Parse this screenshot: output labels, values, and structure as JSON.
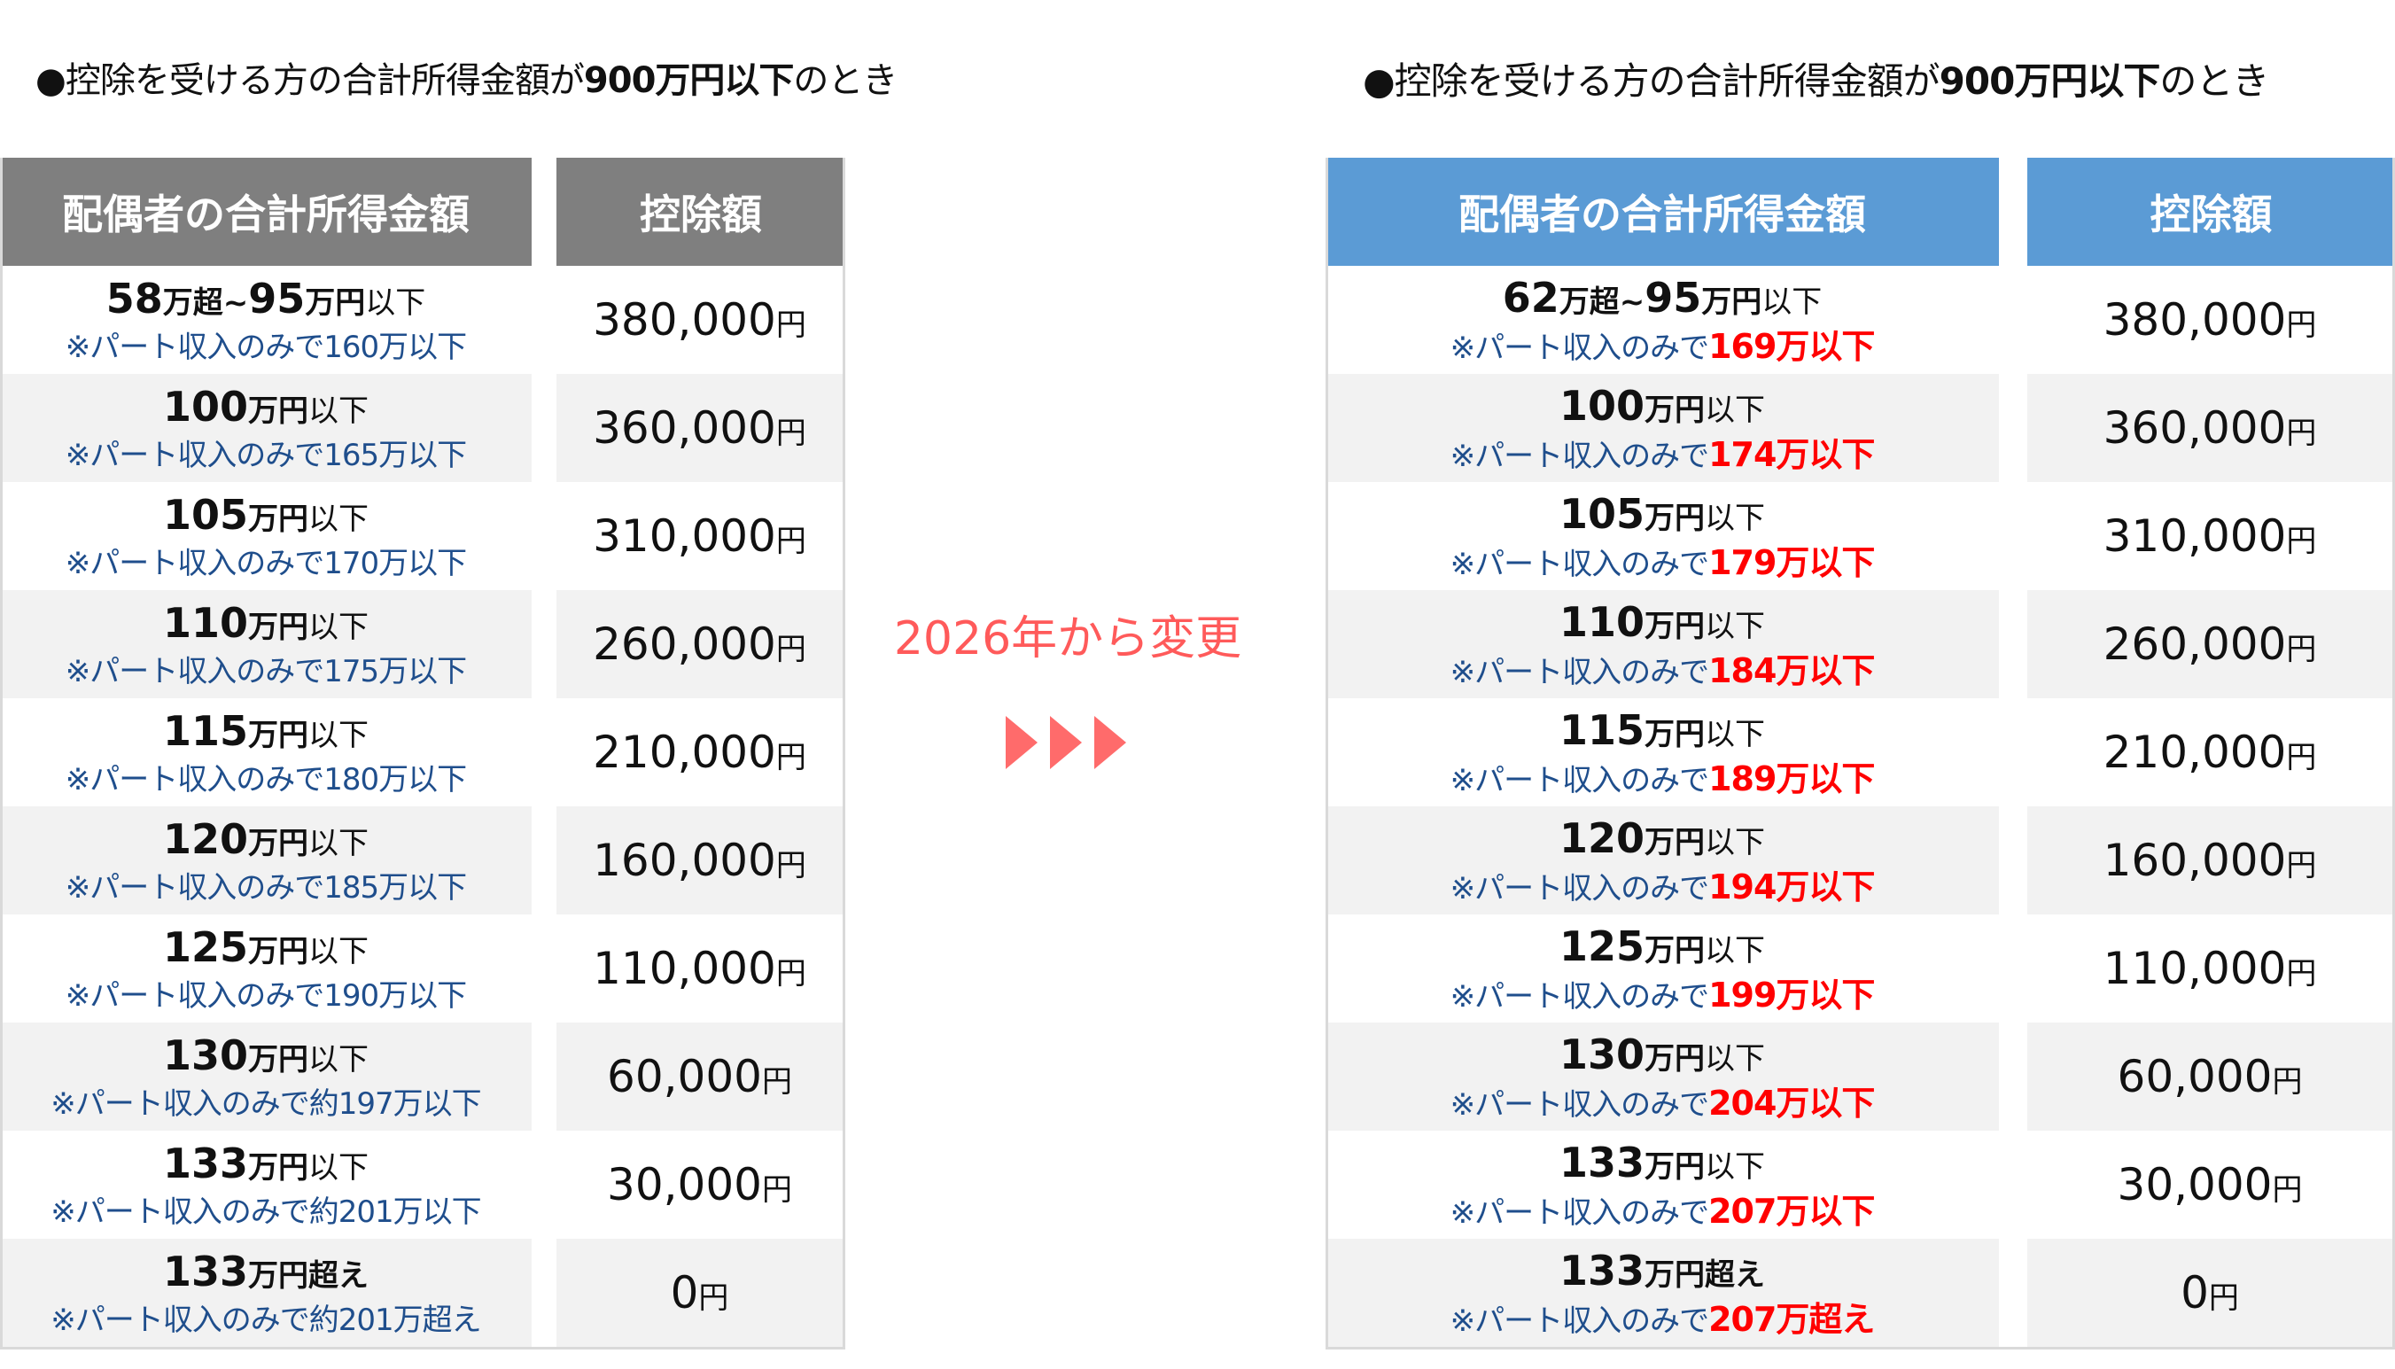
{
  "left": {
    "heading_prefix": "●控除を受ける方の合計所得金額が",
    "heading_bold": "900万円以下",
    "heading_suffix": "のとき",
    "header_income": "配偶者の合計所得金額",
    "header_amount": "控除額",
    "rows": [
      {
        "main_num": "58",
        "main_unit": "万超~",
        "main_num2": "95",
        "main_unit2": "万円",
        "main_rest": "以下",
        "sub": "※パート収入のみで160万以下",
        "amount": "380,000",
        "yen": "円"
      },
      {
        "main_num": "100",
        "main_unit": "万円",
        "main_num2": "",
        "main_unit2": "",
        "main_rest": "以下",
        "sub": "※パート収入のみで165万以下",
        "amount": "360,000",
        "yen": "円"
      },
      {
        "main_num": "105",
        "main_unit": "万円",
        "main_num2": "",
        "main_unit2": "",
        "main_rest": "以下",
        "sub": "※パート収入のみで170万以下",
        "amount": "310,000",
        "yen": "円"
      },
      {
        "main_num": "110",
        "main_unit": "万円",
        "main_num2": "",
        "main_unit2": "",
        "main_rest": "以下",
        "sub": "※パート収入のみで175万以下",
        "amount": "260,000",
        "yen": "円"
      },
      {
        "main_num": "115",
        "main_unit": "万円",
        "main_num2": "",
        "main_unit2": "",
        "main_rest": "以下",
        "sub": "※パート収入のみで180万以下",
        "amount": "210,000",
        "yen": "円"
      },
      {
        "main_num": "120",
        "main_unit": "万円",
        "main_num2": "",
        "main_unit2": "",
        "main_rest": "以下",
        "sub": "※パート収入のみで185万以下",
        "amount": "160,000",
        "yen": "円"
      },
      {
        "main_num": "125",
        "main_unit": "万円",
        "main_num2": "",
        "main_unit2": "",
        "main_rest": "以下",
        "sub": "※パート収入のみで190万以下",
        "amount": "110,000",
        "yen": "円"
      },
      {
        "main_num": "130",
        "main_unit": "万円",
        "main_num2": "",
        "main_unit2": "",
        "main_rest": "以下",
        "sub": "※パート収入のみで約197万以下",
        "amount": "60,000",
        "yen": "円"
      },
      {
        "main_num": "133",
        "main_unit": "万円",
        "main_num2": "",
        "main_unit2": "",
        "main_rest": "以下",
        "sub": "※パート収入のみで約201万以下",
        "amount": "30,000",
        "yen": "円"
      },
      {
        "main_num": "133",
        "main_unit": "万円超え",
        "main_num2": "",
        "main_unit2": "",
        "main_rest": "",
        "sub": "※パート収入のみで約201万超え",
        "amount": "0",
        "yen": "円"
      }
    ]
  },
  "right": {
    "heading_prefix": "●控除を受ける方の合計所得金額が",
    "heading_bold": "900万円以下",
    "heading_suffix": "のとき",
    "header_income": "配偶者の合計所得金額",
    "header_amount": "控除額",
    "rows": [
      {
        "main_num": "62",
        "main_unit": "万超~",
        "main_num2": "95",
        "main_unit2": "万円",
        "main_rest": "以下",
        "sub_prefix": "※パート収入のみで",
        "sub_red": "169万以下",
        "amount": "380,000",
        "yen": "円"
      },
      {
        "main_num": "100",
        "main_unit": "万円",
        "main_num2": "",
        "main_unit2": "",
        "main_rest": "以下",
        "sub_prefix": "※パート収入のみで",
        "sub_red": "174万以下",
        "amount": "360,000",
        "yen": "円"
      },
      {
        "main_num": "105",
        "main_unit": "万円",
        "main_num2": "",
        "main_unit2": "",
        "main_rest": "以下",
        "sub_prefix": "※パート収入のみで",
        "sub_red": "179万以下",
        "amount": "310,000",
        "yen": "円"
      },
      {
        "main_num": "110",
        "main_unit": "万円",
        "main_num2": "",
        "main_unit2": "",
        "main_rest": "以下",
        "sub_prefix": "※パート収入のみで",
        "sub_red": "184万以下",
        "amount": "260,000",
        "yen": "円"
      },
      {
        "main_num": "115",
        "main_unit": "万円",
        "main_num2": "",
        "main_unit2": "",
        "main_rest": "以下",
        "sub_prefix": "※パート収入のみで",
        "sub_red": "189万以下",
        "amount": "210,000",
        "yen": "円"
      },
      {
        "main_num": "120",
        "main_unit": "万円",
        "main_num2": "",
        "main_unit2": "",
        "main_rest": "以下",
        "sub_prefix": "※パート収入のみで",
        "sub_red": "194万以下",
        "amount": "160,000",
        "yen": "円"
      },
      {
        "main_num": "125",
        "main_unit": "万円",
        "main_num2": "",
        "main_unit2": "",
        "main_rest": "以下",
        "sub_prefix": "※パート収入のみで",
        "sub_red": "199万以下",
        "amount": "110,000",
        "yen": "円"
      },
      {
        "main_num": "130",
        "main_unit": "万円",
        "main_num2": "",
        "main_unit2": "",
        "main_rest": "以下",
        "sub_prefix": "※パート収入のみで",
        "sub_red": "204万以下",
        "amount": "60,000",
        "yen": "円"
      },
      {
        "main_num": "133",
        "main_unit": "万円",
        "main_num2": "",
        "main_unit2": "",
        "main_rest": "以下",
        "sub_prefix": "※パート収入のみで",
        "sub_red": "207万以下",
        "amount": "30,000",
        "yen": "円"
      },
      {
        "main_num": "133",
        "main_unit": "万円超え",
        "main_num2": "",
        "main_unit2": "",
        "main_rest": "",
        "sub_prefix": "※パート収入のみで",
        "sub_red": "207万超え",
        "amount": "0",
        "yen": "円"
      }
    ]
  },
  "change_label": "2026年から変更",
  "arrow_icon": "triple-triangle-arrow-icon",
  "colors": {
    "old_header": "#7f7f7f",
    "new_header": "#5b9bd5",
    "note_text": "#1f4e8c",
    "highlight_red": "#ff0000",
    "change_label": "#ff5a5a",
    "alt_row": "#f2f2f2"
  }
}
